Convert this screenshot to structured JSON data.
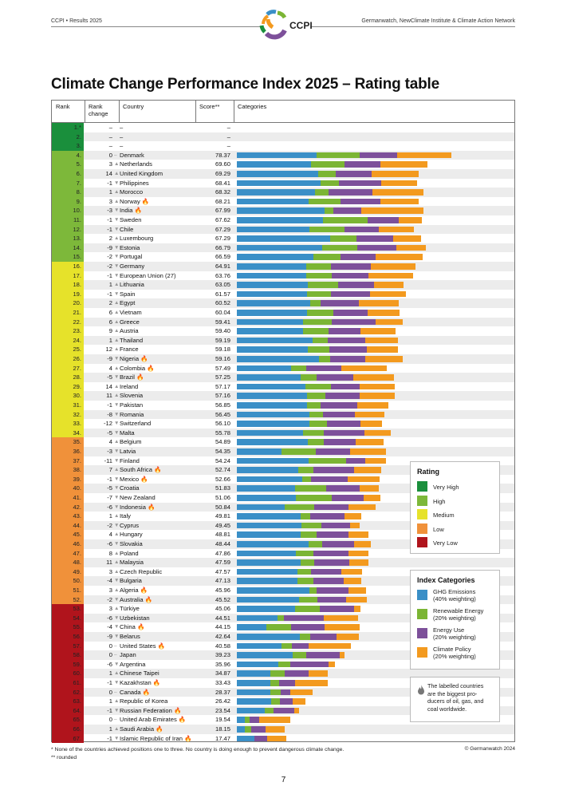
{
  "header": {
    "left": "CCPI • Results 2025",
    "right": "Germanwatch, NewClimate Institute & Climate Action Network",
    "logo_text": "CCPI"
  },
  "title": "Climate Change Performance Index 2025 – Rating table",
  "columns": {
    "rank": "Rank",
    "rank_change_1": "Rank",
    "rank_change_2": "change",
    "country": "Country",
    "score": "Score**",
    "categories": "Categories"
  },
  "colors": {
    "ghg": "#3a8fc7",
    "re": "#7bb534",
    "eu": "#7d509a",
    "cp": "#f39a1f",
    "very_high": "#1a8f3c",
    "high": "#7db83a",
    "medium": "#e6e22a",
    "low": "#f0913a",
    "very_low": "#b0141c",
    "row_alt": "#ececec"
  },
  "rows": [
    [
      "1.*",
      "–",
      "",
      "–",
      "–",
      null,
      null,
      null,
      null,
      "very_high"
    ],
    [
      "2.",
      "–",
      "",
      "–",
      "–",
      null,
      null,
      null,
      null,
      "very_high"
    ],
    [
      "3.",
      "–",
      "",
      "–",
      "–",
      null,
      null,
      null,
      null,
      "very_high"
    ],
    [
      "4.",
      "0",
      "–",
      "Denmark",
      "78.37",
      100,
      54,
      47,
      68,
      "high"
    ],
    [
      "5.",
      "3",
      "▲",
      "Netherlands",
      "69.60",
      93,
      42,
      45,
      59,
      "high"
    ],
    [
      "6.",
      "14",
      "▲",
      "United Kingdom",
      "69.29",
      102,
      22,
      45,
      59,
      "high"
    ],
    [
      "7.",
      "-1",
      "▼",
      "Philippines",
      "68.41",
      105,
      23,
      53,
      45,
      "high"
    ],
    [
      "8.",
      "1",
      "▲",
      "Morocco",
      "68.32",
      98,
      17,
      55,
      64,
      "high"
    ],
    [
      "9.",
      "3",
      "▲",
      "Norway 🔥",
      "68.21",
      90,
      40,
      50,
      48,
      "high"
    ],
    [
      "10.",
      "-3",
      "▼",
      "India 🔥",
      "67.99",
      110,
      11,
      35,
      78,
      "high"
    ],
    [
      "11.",
      "-1",
      "▼",
      "Sweden",
      "67.62",
      108,
      56,
      39,
      29,
      "high"
    ],
    [
      "12.",
      "-1",
      "▼",
      "Chile",
      "67.29",
      91,
      44,
      43,
      44,
      "high"
    ],
    [
      "13.",
      "2",
      "▲",
      "Luxembourg",
      "67.29",
      117,
      33,
      46,
      35,
      "high"
    ],
    [
      "14.",
      "-9",
      "▼",
      "Estonia",
      "66.79",
      107,
      44,
      49,
      37,
      "high"
    ],
    [
      "15.",
      "-2",
      "▼",
      "Portugal",
      "66.59",
      96,
      34,
      44,
      59,
      "high"
    ],
    [
      "16.",
      "-2",
      "▼",
      "Germany",
      "64.91",
      87,
      31,
      50,
      56,
      "medium"
    ],
    [
      "17.",
      "-1",
      "▼",
      "European Union (27)",
      "63.76",
      87,
      32,
      46,
      56,
      "medium"
    ],
    [
      "18.",
      "1",
      "▲",
      "Lithuania",
      "63.05",
      89,
      38,
      45,
      37,
      "medium"
    ],
    [
      "19.",
      "-1",
      "▼",
      "Spain",
      "61.57",
      88,
      30,
      49,
      45,
      "medium"
    ],
    [
      "20.",
      "2",
      "▲",
      "Egypt",
      "60.52",
      92,
      13,
      48,
      50,
      "medium"
    ],
    [
      "21.",
      "6",
      "▲",
      "Vietnam",
      "60.04",
      88,
      33,
      43,
      40,
      "medium"
    ],
    [
      "22.",
      "6",
      "▲",
      "Greece",
      "59.41",
      83,
      36,
      55,
      34,
      "medium"
    ],
    [
      "23.",
      "9",
      "▲",
      "Austria",
      "59.40",
      83,
      32,
      40,
      44,
      "medium"
    ],
    [
      "24.",
      "1",
      "▲",
      "Thailand",
      "59.19",
      95,
      19,
      47,
      41,
      "medium"
    ],
    [
      "25.",
      "12",
      "▲",
      "France",
      "59.18",
      89,
      27,
      47,
      39,
      "medium"
    ],
    [
      "26.",
      "-9",
      "▼",
      "Nigeria 🔥",
      "59.16",
      103,
      14,
      44,
      47,
      "medium"
    ],
    [
      "27.",
      "4",
      "▲",
      "Colombia 🔥",
      "57.49",
      68,
      19,
      44,
      57,
      "medium"
    ],
    [
      "28.",
      "-5",
      "▼",
      "Brazil 🔥",
      "57.25",
      80,
      20,
      46,
      51,
      "medium"
    ],
    [
      "29.",
      "14",
      "▲",
      "Ireland",
      "57.17",
      86,
      32,
      36,
      44,
      "medium"
    ],
    [
      "30.",
      "11",
      "▲",
      "Slovenia",
      "57.16",
      88,
      23,
      43,
      44,
      "medium"
    ],
    [
      "31.",
      "-1",
      "▼",
      "Pakistan",
      "56.85",
      88,
      17,
      46,
      39,
      "medium"
    ],
    [
      "32.",
      "-8",
      "▼",
      "Romania",
      "56.45",
      91,
      17,
      40,
      37,
      "medium"
    ],
    [
      "33.",
      "-12",
      "▼",
      "Switzerland",
      "56.10",
      91,
      22,
      42,
      27,
      "medium"
    ],
    [
      "34.",
      "-5",
      "▼",
      "Malta",
      "55.78",
      83,
      26,
      51,
      33,
      "medium"
    ],
    [
      "35.",
      "4",
      "▲",
      "Belgium",
      "54.89",
      89,
      20,
      40,
      35,
      "low"
    ],
    [
      "36.",
      "-3",
      "▼",
      "Latvia",
      "54.35",
      56,
      43,
      43,
      45,
      "low"
    ],
    [
      "37.",
      "-11",
      "▼",
      "Finland",
      "54.24",
      90,
      47,
      24,
      26,
      "low"
    ],
    [
      "38.",
      "7",
      "▲",
      "South Africa 🔥",
      "52.74",
      77,
      19,
      51,
      34,
      "low"
    ],
    [
      "39.",
      "-1",
      "▼",
      "Mexico 🔥",
      "52.66",
      82,
      11,
      46,
      40,
      "low"
    ],
    [
      "40.",
      "-5",
      "▼",
      "Croatia",
      "51.83",
      73,
      39,
      42,
      24,
      "low"
    ],
    [
      "41.",
      "-7",
      "▼",
      "New Zealand",
      "51.06",
      74,
      45,
      40,
      21,
      "low"
    ],
    [
      "42.",
      "-6",
      "▼",
      "Indonesia 🔥",
      "50.84",
      60,
      37,
      43,
      34,
      "low"
    ],
    [
      "43.",
      "1",
      "▲",
      "Italy",
      "49.81",
      80,
      12,
      43,
      21,
      "low"
    ],
    [
      "44.",
      "-2",
      "▼",
      "Cyprus",
      "49.45",
      81,
      25,
      36,
      12,
      "low"
    ],
    [
      "45.",
      "4",
      "▲",
      "Hungary",
      "48.81",
      80,
      20,
      40,
      25,
      "low"
    ],
    [
      "46.",
      "-6",
      "▼",
      "Slovakia",
      "48.44",
      90,
      17,
      40,
      21,
      "low"
    ],
    [
      "47.",
      "8",
      "▲",
      "Poland",
      "47.86",
      74,
      22,
      44,
      25,
      "low"
    ],
    [
      "48.",
      "11",
      "▲",
      "Malaysia",
      "47.59",
      80,
      17,
      44,
      24,
      "low"
    ],
    [
      "49.",
      "3",
      "▲",
      "Czech Republic",
      "47.57",
      76,
      17,
      38,
      26,
      "low"
    ],
    [
      "50.",
      "-4",
      "▼",
      "Bulgaria",
      "47.13",
      76,
      20,
      38,
      22,
      "low"
    ],
    [
      "51.",
      "3",
      "▲",
      "Algeria 🔥",
      "45.96",
      91,
      9,
      40,
      22,
      "low"
    ],
    [
      "52.",
      "-2",
      "▼",
      "Australia 🔥",
      "45.52",
      78,
      23,
      36,
      26,
      "low"
    ],
    [
      "53.",
      "3",
      "▲",
      "Türkiye",
      "45.06",
      73,
      31,
      43,
      8,
      "very_low"
    ],
    [
      "54.",
      "-6",
      "▼",
      "Uzbekistan",
      "44.51",
      51,
      8,
      50,
      43,
      "very_low"
    ],
    [
      "55.",
      "-4",
      "▼",
      "China 🔥",
      "44.15",
      37,
      31,
      42,
      44,
      "very_low"
    ],
    [
      "56.",
      "-9",
      "▼",
      "Belarus",
      "42.64",
      79,
      13,
      33,
      28,
      "very_low"
    ],
    [
      "57.",
      "0",
      "–",
      "United States 🔥",
      "40.58",
      56,
      13,
      21,
      53,
      "very_low"
    ],
    [
      "58.",
      "0",
      "–",
      "Japan",
      "39.23",
      70,
      17,
      42,
      6,
      "very_low"
    ],
    [
      "59.",
      "-6",
      "▼",
      "Argentina",
      "35.96",
      52,
      15,
      48,
      8,
      "very_low"
    ],
    [
      "60.",
      "1",
      "▲",
      "Chinese Taipei",
      "34.87",
      42,
      18,
      30,
      24,
      "very_low"
    ],
    [
      "61.",
      "-1",
      "▼",
      "Kazakhstan 🔥",
      "33.43",
      42,
      11,
      20,
      41,
      "very_low"
    ],
    [
      "62.",
      "0",
      "–",
      "Canada 🔥",
      "28.37",
      42,
      13,
      12,
      28,
      "very_low"
    ],
    [
      "63.",
      "1",
      "▲",
      "Republic of Korea",
      "26.42",
      43,
      11,
      16,
      16,
      "very_low"
    ],
    [
      "64.",
      "-1",
      "▼",
      "Russian Federation 🔥",
      "23.54",
      35,
      11,
      26,
      6,
      "very_low"
    ],
    [
      "65.",
      "0",
      "–",
      "United Arab Emirates 🔥",
      "19.54",
      10,
      6,
      12,
      39,
      "very_low"
    ],
    [
      "66.",
      "1",
      "▲",
      "Saudi Arabia 🔥",
      "18.15",
      10,
      8,
      18,
      24,
      "very_low"
    ],
    [
      "67.",
      "-1",
      "▼",
      "Islamic Republic of Iran 🔥",
      "17.47",
      22,
      0,
      16,
      24,
      "very_low"
    ]
  ],
  "rating_legend": {
    "title": "Rating",
    "items": [
      {
        "label": "Very High",
        "key": "very_high"
      },
      {
        "label": "High",
        "key": "high"
      },
      {
        "label": "Medium",
        "key": "medium"
      },
      {
        "label": "Low",
        "key": "low"
      },
      {
        "label": "Very Low",
        "key": "very_low"
      }
    ]
  },
  "index_legend": {
    "title": "Index Categories",
    "items": [
      {
        "l1": "GHG Emissions",
        "l2": "(40% weighting)",
        "key": "ghg"
      },
      {
        "l1": "Renewable Energy",
        "l2": "(20% weighting)",
        "key": "re"
      },
      {
        "l1": "Energy Use",
        "l2": "(20% weighting)",
        "key": "eu"
      },
      {
        "l1": "Climate Policy",
        "l2": "(20% weighting)",
        "key": "cp"
      }
    ]
  },
  "flame_note": {
    "l1": "The labelled countries",
    "l2": "are the biggest pro-",
    "l3": "ducers of oil, gas, and",
    "l4": "coal worldwide."
  },
  "footnotes": {
    "f1": "* None of the countries achieved positions one to three. No country is doing enough to prevent dangerous climate change.",
    "f2": "** rounded"
  },
  "copyright": "© Germanwatch 2024",
  "page_number": "7"
}
